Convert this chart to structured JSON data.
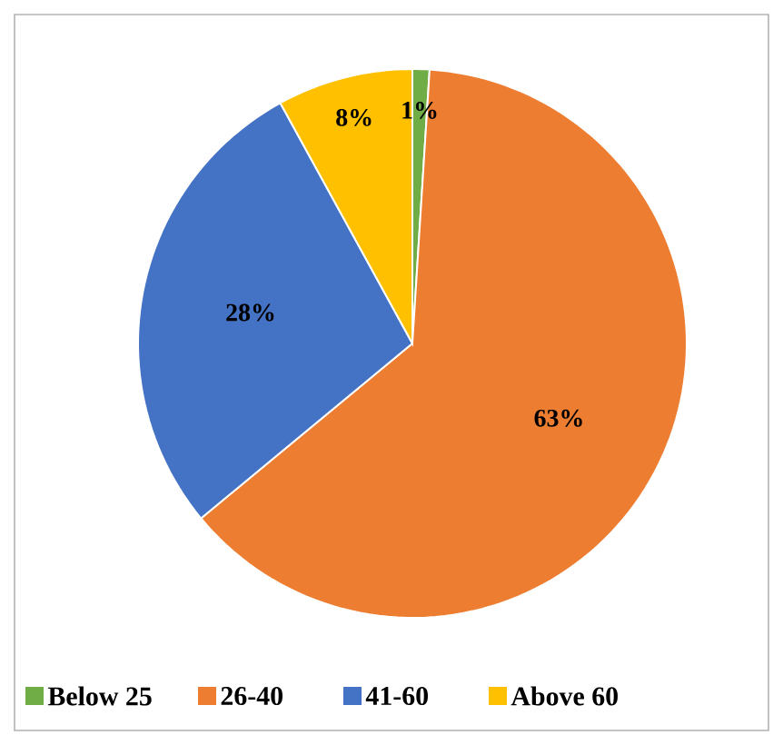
{
  "chart_data": {
    "type": "pie",
    "categories": [
      "Below 25",
      "26-40",
      "41-60",
      "Above 60"
    ],
    "values": [
      1,
      63,
      28,
      8
    ],
    "value_labels": [
      "1%",
      "63%",
      "28%",
      "8%"
    ],
    "colors": [
      "#70ad47",
      "#ed7d31",
      "#4472c4",
      "#ffc000"
    ],
    "legend": "bottom"
  }
}
